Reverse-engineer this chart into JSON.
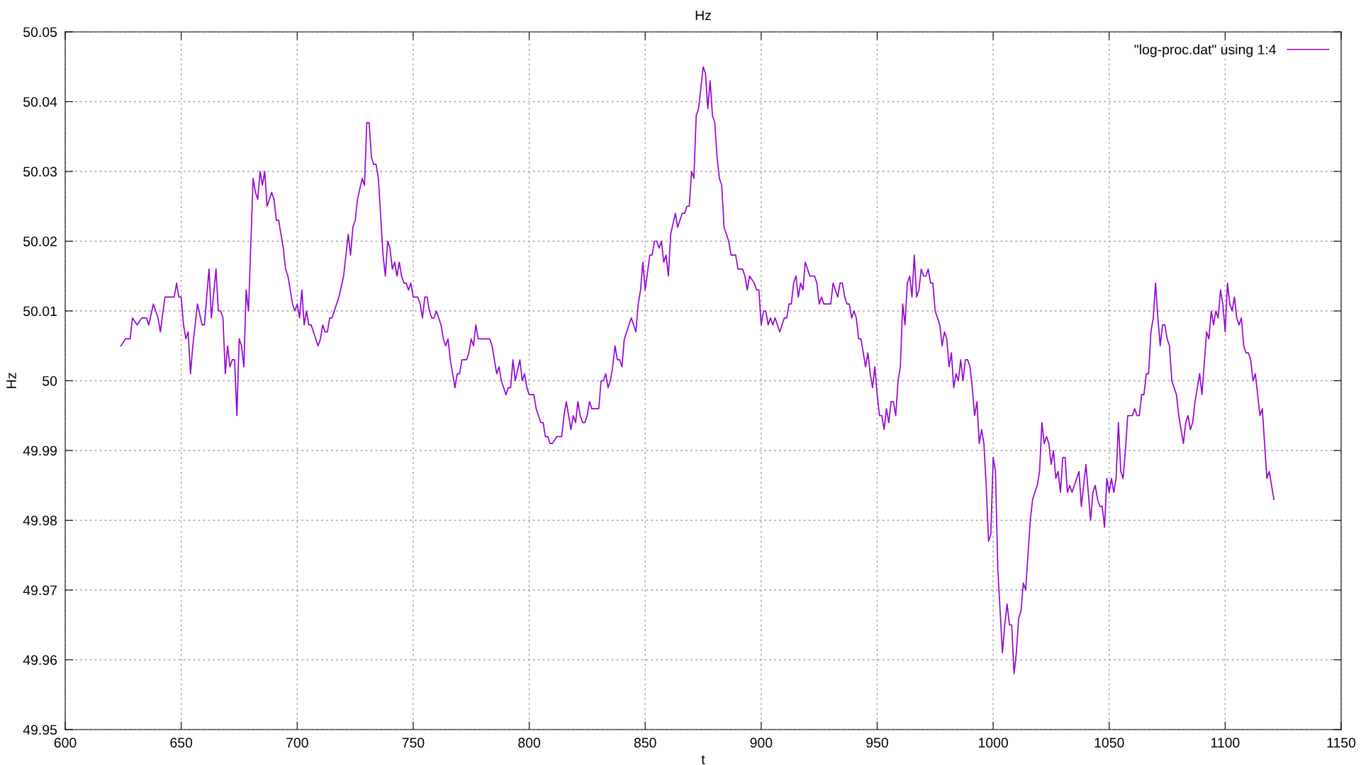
{
  "chart_data": {
    "type": "line",
    "title": "Hz",
    "xlabel": "t",
    "ylabel": "Hz",
    "xlim": [
      600,
      1150
    ],
    "xticks": [
      600,
      650,
      700,
      750,
      800,
      850,
      900,
      950,
      1000,
      1050,
      1100,
      1150
    ],
    "ylim": [
      49.95,
      50.05
    ],
    "yticks": [
      49.95,
      49.96,
      49.97,
      49.98,
      49.99,
      50,
      50.01,
      50.02,
      50.03,
      50.04,
      50.05
    ],
    "grid": true,
    "legend": "top right",
    "line_style": "solid",
    "marker": "none",
    "series": [
      {
        "name": "\"log-proc.dat\" using 1:4",
        "color": "#9400d3",
        "x": [
          624,
          626,
          628,
          629,
          631,
          633,
          635,
          636,
          638,
          640,
          641,
          643,
          647,
          648,
          649,
          650,
          651,
          652,
          653,
          654,
          655,
          657,
          659,
          660,
          662,
          663,
          665,
          666,
          667,
          668,
          669,
          670,
          671,
          672,
          673,
          674,
          675,
          676,
          677,
          678,
          679,
          681,
          682,
          683,
          684,
          685,
          686,
          687,
          689,
          690,
          691,
          692,
          693,
          694,
          695,
          696,
          697,
          698,
          699,
          700,
          701,
          702,
          703,
          704,
          705,
          706,
          707,
          709,
          710,
          711,
          712,
          713,
          714,
          715,
          718,
          720,
          722,
          723,
          724,
          725,
          726,
          728,
          729,
          730,
          731,
          732,
          733,
          734,
          735,
          737,
          738,
          739,
          740,
          741,
          742,
          743,
          744,
          745,
          746,
          747,
          748,
          749,
          750,
          752,
          753,
          754,
          755,
          756,
          757,
          758,
          759,
          760,
          762,
          763,
          764,
          765,
          766,
          767,
          768,
          769,
          770,
          771,
          773,
          774,
          775,
          776,
          777,
          778,
          783,
          784,
          786,
          787,
          788,
          790,
          791,
          792,
          793,
          794,
          796,
          797,
          798,
          799,
          800,
          802,
          803,
          805,
          806,
          807,
          808,
          809,
          810,
          812,
          814,
          815,
          816,
          818,
          819,
          820,
          821,
          822,
          823,
          824,
          825,
          826,
          827,
          830,
          831,
          832,
          833,
          834,
          835,
          836,
          837,
          838,
          839,
          840,
          841,
          843,
          844,
          846,
          847,
          848,
          849,
          850,
          852,
          853,
          854,
          855,
          856,
          857,
          858,
          859,
          860,
          861,
          863,
          864,
          866,
          867,
          868,
          869,
          870,
          871,
          872,
          873,
          875,
          876,
          877,
          878,
          879,
          880,
          881,
          882,
          883,
          884,
          886,
          887,
          889,
          890,
          892,
          893,
          894,
          895,
          897,
          898,
          899,
          900,
          901,
          902,
          903,
          904,
          905,
          906,
          907,
          908,
          910,
          911,
          912,
          913,
          914,
          915,
          916,
          917,
          918,
          919,
          920,
          921,
          923,
          924,
          925,
          926,
          927,
          930,
          931,
          932,
          933,
          934,
          935,
          936,
          937,
          938,
          939,
          940,
          941,
          942,
          943,
          944,
          945,
          946,
          947,
          948,
          949,
          950,
          951,
          952,
          953,
          954,
          955,
          956,
          957,
          958,
          959,
          960,
          961,
          962,
          963,
          964,
          965,
          966,
          967,
          968,
          969,
          970,
          971,
          972,
          973,
          974,
          975,
          976,
          977,
          978,
          979,
          980,
          981,
          982,
          983,
          984,
          985,
          986,
          987,
          988,
          989,
          990,
          991,
          992,
          993,
          994,
          995,
          996,
          997,
          998,
          999,
          1000,
          1001,
          1002,
          1003,
          1004,
          1005,
          1006,
          1007,
          1008,
          1009,
          1010,
          1011,
          1012,
          1013,
          1014,
          1015,
          1016,
          1017,
          1018,
          1019,
          1020,
          1021,
          1022,
          1023,
          1024,
          1025,
          1026,
          1027,
          1028,
          1029,
          1030,
          1031,
          1032,
          1033,
          1034,
          1035,
          1036,
          1037,
          1038,
          1039,
          1040,
          1041,
          1042,
          1043,
          1044,
          1045,
          1046,
          1047,
          1048,
          1049,
          1050,
          1051,
          1052,
          1053,
          1054,
          1055,
          1056,
          1057,
          1058,
          1059,
          1060,
          1061,
          1062,
          1063,
          1064,
          1065,
          1066,
          1067,
          1068,
          1069,
          1070,
          1071,
          1072,
          1073,
          1074,
          1075,
          1076,
          1077,
          1079,
          1080,
          1082,
          1083,
          1084,
          1085,
          1086,
          1087,
          1089,
          1090,
          1092,
          1093,
          1094,
          1095,
          1096,
          1097,
          1098,
          1099,
          1100,
          1101,
          1102,
          1103,
          1104,
          1105,
          1106,
          1107,
          1108,
          1109,
          1110,
          1111,
          1112,
          1113,
          1114,
          1115,
          1116,
          1118,
          1119,
          1121
        ],
        "values": [
          50.005,
          50.006,
          50.006,
          50.009,
          50.008,
          50.009,
          50.009,
          50.008,
          50.011,
          50.009,
          50.007,
          50.012,
          50.012,
          50.014,
          50.012,
          50.012,
          50.008,
          50.006,
          50.007,
          50.001,
          50.005,
          50.011,
          50.008,
          50.008,
          50.016,
          50.009,
          50.016,
          50.01,
          50.01,
          50.009,
          50.001,
          50.005,
          50.002,
          50.003,
          50.003,
          49.995,
          50.006,
          50.005,
          50.002,
          50.013,
          50.01,
          50.029,
          50.027,
          50.026,
          50.03,
          50.028,
          50.03,
          50.025,
          50.027,
          50.026,
          50.023,
          50.023,
          50.021,
          50.019,
          50.016,
          50.015,
          50.013,
          50.011,
          50.01,
          50.011,
          50.009,
          50.013,
          50.008,
          50.01,
          50.008,
          50.008,
          50.007,
          50.005,
          50.006,
          50.008,
          50.007,
          50.007,
          50.009,
          50.009,
          50.012,
          50.015,
          50.021,
          50.018,
          50.022,
          50.023,
          50.026,
          50.029,
          50.028,
          50.037,
          50.037,
          50.032,
          50.031,
          50.031,
          50.029,
          50.018,
          50.015,
          50.02,
          50.019,
          50.016,
          50.017,
          50.015,
          50.017,
          50.015,
          50.014,
          50.014,
          50.013,
          50.014,
          50.012,
          50.012,
          50.011,
          50.009,
          50.012,
          50.012,
          50.01,
          50.009,
          50.009,
          50.01,
          50.008,
          50.006,
          50.005,
          50.006,
          50.003,
          50.001,
          49.999,
          50.001,
          50.001,
          50.003,
          50.003,
          50.004,
          50.006,
          50.005,
          50.008,
          50.006,
          50.006,
          50.005,
          50.001,
          50.002,
          50.0,
          49.998,
          49.999,
          49.999,
          50.003,
          50.0,
          50.003,
          50.0,
          50.001,
          49.999,
          49.998,
          49.998,
          49.996,
          49.994,
          49.994,
          49.992,
          49.992,
          49.991,
          49.991,
          49.992,
          49.992,
          49.995,
          49.997,
          49.993,
          49.995,
          49.994,
          49.997,
          49.995,
          49.994,
          49.994,
          49.995,
          49.997,
          49.996,
          49.996,
          50.0,
          50.0,
          50.001,
          49.999,
          50.0,
          50.002,
          50.005,
          50.003,
          50.003,
          50.002,
          50.006,
          50.008,
          50.009,
          50.007,
          50.011,
          50.013,
          50.017,
          50.013,
          50.018,
          50.018,
          50.02,
          50.02,
          50.019,
          50.02,
          50.017,
          50.018,
          50.015,
          50.021,
          50.024,
          50.022,
          50.024,
          50.024,
          50.025,
          50.025,
          50.03,
          50.029,
          50.038,
          50.039,
          50.045,
          50.044,
          50.039,
          50.043,
          50.038,
          50.037,
          50.032,
          50.029,
          50.028,
          50.022,
          50.02,
          50.018,
          50.018,
          50.016,
          50.016,
          50.015,
          50.013,
          50.015,
          50.014,
          50.013,
          50.013,
          50.008,
          50.01,
          50.01,
          50.008,
          50.009,
          50.008,
          50.009,
          50.008,
          50.007,
          50.009,
          50.009,
          50.011,
          50.011,
          50.014,
          50.015,
          50.012,
          50.014,
          50.013,
          50.017,
          50.016,
          50.015,
          50.015,
          50.014,
          50.011,
          50.012,
          50.011,
          50.011,
          50.014,
          50.013,
          50.012,
          50.014,
          50.014,
          50.012,
          50.011,
          50.011,
          50.009,
          50.01,
          50.009,
          50.006,
          50.006,
          50.004,
          50.002,
          50.004,
          50.001,
          49.999,
          50.002,
          49.998,
          49.995,
          49.995,
          49.993,
          49.996,
          49.994,
          49.997,
          49.997,
          49.995,
          50.0,
          50.002,
          50.011,
          50.008,
          50.014,
          50.015,
          50.012,
          50.018,
          50.012,
          50.013,
          50.016,
          50.015,
          50.015,
          50.016,
          50.014,
          50.014,
          50.01,
          50.009,
          50.008,
          50.005,
          50.007,
          50.006,
          50.002,
          50.004,
          49.999,
          50.001,
          50.0,
          50.003,
          50.0,
          50.003,
          50.003,
          50.002,
          49.999,
          49.995,
          49.997,
          49.991,
          49.993,
          49.991,
          49.985,
          49.977,
          49.978,
          49.989,
          49.987,
          49.973,
          49.967,
          49.961,
          49.965,
          49.968,
          49.965,
          49.965,
          49.958,
          49.961,
          49.966,
          49.967,
          49.971,
          49.97,
          49.975,
          49.98,
          49.983,
          49.984,
          49.985,
          49.987,
          49.994,
          49.991,
          49.992,
          49.991,
          49.988,
          49.99,
          49.986,
          49.987,
          49.984,
          49.989,
          49.989,
          49.984,
          49.985,
          49.984,
          49.985,
          49.986,
          49.987,
          49.982,
          49.985,
          49.988,
          49.984,
          49.98,
          49.984,
          49.985,
          49.983,
          49.982,
          49.982,
          49.979,
          49.986,
          49.984,
          49.986,
          49.984,
          49.986,
          49.994,
          49.987,
          49.986,
          49.99,
          49.995,
          49.995,
          49.995,
          49.996,
          49.995,
          49.995,
          49.998,
          49.998,
          50.001,
          50.001,
          50.007,
          50.009,
          50.014,
          50.009,
          50.005,
          50.008,
          50.008,
          50.006,
          50.005,
          50.0,
          49.998,
          49.995,
          49.991,
          49.994,
          49.995,
          49.993,
          49.994,
          49.997,
          50.001,
          49.998,
          50.007,
          50.006,
          50.01,
          50.008,
          50.01,
          50.009,
          50.013,
          50.011,
          50.007,
          50.014,
          50.011,
          50.01,
          50.012,
          50.009,
          50.008,
          50.009,
          50.005,
          50.004,
          50.004,
          50.003,
          50.0,
          50.001,
          49.998,
          49.995,
          49.996,
          49.986,
          49.987,
          49.983
        ]
      }
    ]
  }
}
